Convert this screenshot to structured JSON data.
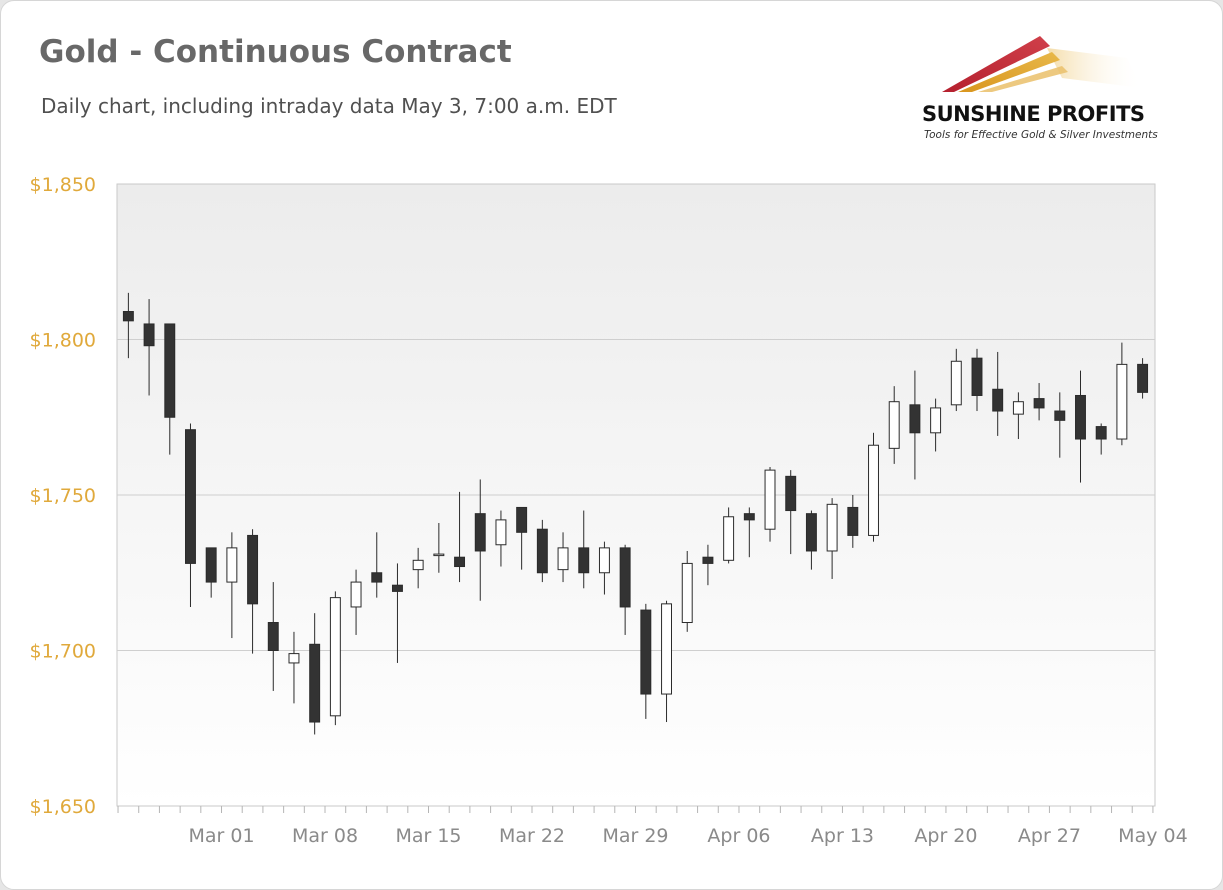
{
  "header": {
    "title": "Gold - Continuous Contract",
    "subtitle": "Daily chart, including intraday data May 3, 7:00 a.m. EDT"
  },
  "logo": {
    "brand": "SUNSHINE PROFITS",
    "tagline": "Tools for Effective Gold & Silver Investments",
    "colors": [
      "#b5202e",
      "#d9961e",
      "#e8b84a"
    ]
  },
  "colors": {
    "y_tick_label": "#e0a93b",
    "x_tick_label": "#8a8a8a",
    "bear_candle": "#333333",
    "bull_candle": "#ffffff",
    "grid": "#cfcfcf",
    "plot_top": "#ececec",
    "plot_bottom": "#ffffff"
  },
  "chart_data": {
    "type": "candlestick",
    "title": "Gold - Continuous Contract",
    "subtitle": "Daily chart, including intraday data May 3, 7:00 a.m. EDT",
    "ylim": [
      1650,
      1850
    ],
    "yticks": [
      1650,
      1700,
      1750,
      1800,
      1850
    ],
    "ytick_labels": [
      "$1,650",
      "$1,700",
      "$1,750",
      "$1,800",
      "$1,850"
    ],
    "x_tick_labels": [
      "Mar 01",
      "Mar 08",
      "Mar 15",
      "Mar 22",
      "Mar 29",
      "Apr 06",
      "Apr 13",
      "Apr 20",
      "Apr 27",
      "May 04"
    ],
    "x_tick_positions": [
      4.5,
      9.5,
      14.5,
      19.5,
      24.5,
      29.5,
      34.5,
      39.5,
      44.5,
      49.5
    ],
    "grid": true,
    "legend": "none",
    "candles": [
      {
        "date": "Feb 22",
        "open": 1809,
        "high": 1815,
        "low": 1794,
        "close": 1806
      },
      {
        "date": "Feb 23",
        "open": 1805,
        "high": 1813,
        "low": 1782,
        "close": 1798
      },
      {
        "date": "Feb 24",
        "open": 1805,
        "high": 1805,
        "low": 1763,
        "close": 1775
      },
      {
        "date": "Feb 25",
        "open": 1771,
        "high": 1773,
        "low": 1714,
        "close": 1728
      },
      {
        "date": "Feb 26",
        "open": 1733,
        "high": 1733,
        "low": 1717,
        "close": 1722
      },
      {
        "date": "Mar 01",
        "open": 1722,
        "high": 1738,
        "low": 1704,
        "close": 1733
      },
      {
        "date": "Mar 02",
        "open": 1737,
        "high": 1739,
        "low": 1699,
        "close": 1715
      },
      {
        "date": "Mar 03",
        "open": 1709,
        "high": 1722,
        "low": 1687,
        "close": 1700
      },
      {
        "date": "Mar 04",
        "open": 1696,
        "high": 1706,
        "low": 1683,
        "close": 1699
      },
      {
        "date": "Mar 05",
        "open": 1702,
        "high": 1712,
        "low": 1673,
        "close": 1677
      },
      {
        "date": "Mar 08",
        "open": 1679,
        "high": 1719,
        "low": 1676,
        "close": 1717
      },
      {
        "date": "Mar 09",
        "open": 1714,
        "high": 1726,
        "low": 1705,
        "close": 1722
      },
      {
        "date": "Mar 10",
        "open": 1725,
        "high": 1738,
        "low": 1717,
        "close": 1722
      },
      {
        "date": "Mar 11",
        "open": 1721,
        "high": 1728,
        "low": 1696,
        "close": 1719
      },
      {
        "date": "Mar 12",
        "open": 1726,
        "high": 1733,
        "low": 1720,
        "close": 1729
      },
      {
        "date": "Mar 15",
        "open": 1731,
        "high": 1741,
        "low": 1725,
        "close": 1731
      },
      {
        "date": "Mar 16",
        "open": 1730,
        "high": 1751,
        "low": 1722,
        "close": 1727
      },
      {
        "date": "Mar 17",
        "open": 1744,
        "high": 1755,
        "low": 1716,
        "close": 1732
      },
      {
        "date": "Mar 18",
        "open": 1734,
        "high": 1745,
        "low": 1727,
        "close": 1742
      },
      {
        "date": "Mar 19",
        "open": 1746,
        "high": 1746,
        "low": 1726,
        "close": 1738
      },
      {
        "date": "Mar 22",
        "open": 1739,
        "high": 1742,
        "low": 1722,
        "close": 1725
      },
      {
        "date": "Mar 23",
        "open": 1726,
        "high": 1738,
        "low": 1722,
        "close": 1733
      },
      {
        "date": "Mar 24",
        "open": 1733,
        "high": 1745,
        "low": 1720,
        "close": 1725
      },
      {
        "date": "Mar 25",
        "open": 1725,
        "high": 1735,
        "low": 1718,
        "close": 1733
      },
      {
        "date": "Mar 26",
        "open": 1733,
        "high": 1734,
        "low": 1705,
        "close": 1714
      },
      {
        "date": "Mar 29",
        "open": 1713,
        "high": 1715,
        "low": 1678,
        "close": 1686
      },
      {
        "date": "Mar 30",
        "open": 1686,
        "high": 1716,
        "low": 1677,
        "close": 1715
      },
      {
        "date": "Mar 31",
        "open": 1709,
        "high": 1732,
        "low": 1706,
        "close": 1728
      },
      {
        "date": "Apr 01",
        "open": 1730,
        "high": 1734,
        "low": 1721,
        "close": 1728
      },
      {
        "date": "Apr 05",
        "open": 1729,
        "high": 1746,
        "low": 1728,
        "close": 1743
      },
      {
        "date": "Apr 06",
        "open": 1744,
        "high": 1746,
        "low": 1730,
        "close": 1742
      },
      {
        "date": "Apr 07",
        "open": 1739,
        "high": 1759,
        "low": 1735,
        "close": 1758
      },
      {
        "date": "Apr 08",
        "open": 1756,
        "high": 1758,
        "low": 1731,
        "close": 1745
      },
      {
        "date": "Apr 09",
        "open": 1744,
        "high": 1745,
        "low": 1726,
        "close": 1732
      },
      {
        "date": "Apr 12",
        "open": 1732,
        "high": 1749,
        "low": 1723,
        "close": 1747
      },
      {
        "date": "Apr 13",
        "open": 1746,
        "high": 1750,
        "low": 1733,
        "close": 1737
      },
      {
        "date": "Apr 14",
        "open": 1737,
        "high": 1770,
        "low": 1735,
        "close": 1766
      },
      {
        "date": "Apr 15",
        "open": 1765,
        "high": 1785,
        "low": 1760,
        "close": 1780
      },
      {
        "date": "Apr 16",
        "open": 1779,
        "high": 1790,
        "low": 1755,
        "close": 1770
      },
      {
        "date": "Apr 19",
        "open": 1770,
        "high": 1781,
        "low": 1764,
        "close": 1778
      },
      {
        "date": "Apr 20",
        "open": 1779,
        "high": 1797,
        "low": 1777,
        "close": 1793
      },
      {
        "date": "Apr 21",
        "open": 1794,
        "high": 1797,
        "low": 1777,
        "close": 1782
      },
      {
        "date": "Apr 22",
        "open": 1784,
        "high": 1796,
        "low": 1769,
        "close": 1777
      },
      {
        "date": "Apr 23",
        "open": 1776,
        "high": 1783,
        "low": 1768,
        "close": 1780
      },
      {
        "date": "Apr 26",
        "open": 1781,
        "high": 1786,
        "low": 1774,
        "close": 1778
      },
      {
        "date": "Apr 27",
        "open": 1777,
        "high": 1783,
        "low": 1762,
        "close": 1774
      },
      {
        "date": "Apr 28",
        "open": 1782,
        "high": 1790,
        "low": 1754,
        "close": 1768
      },
      {
        "date": "Apr 29",
        "open": 1772,
        "high": 1773,
        "low": 1763,
        "close": 1768
      },
      {
        "date": "Apr 30",
        "open": 1768,
        "high": 1799,
        "low": 1766,
        "close": 1792
      },
      {
        "date": "May 03",
        "open": 1792,
        "high": 1794,
        "low": 1781,
        "close": 1783
      }
    ]
  }
}
